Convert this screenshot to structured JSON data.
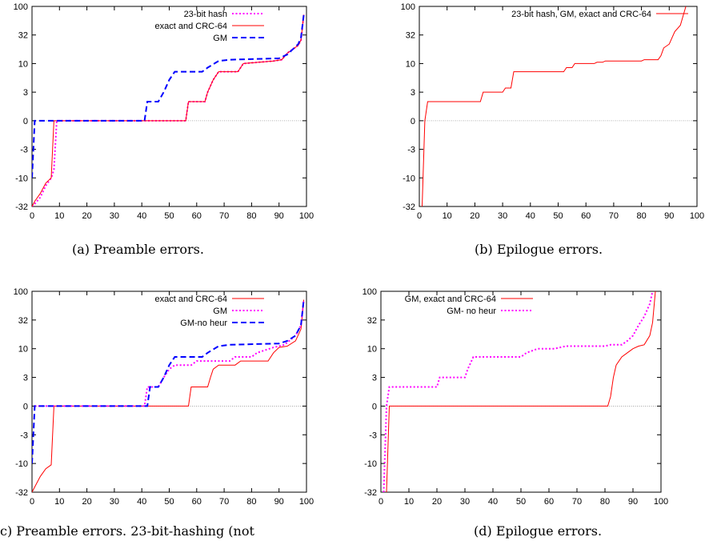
{
  "colors": {
    "red": "#ff0000",
    "magenta": "#ff00ff",
    "blue": "#0000ff",
    "zero_line": "#999999"
  },
  "captions": {
    "a": "(a)  Preamble errors.",
    "b": "(b)  Epilogue errors.",
    "c": "c)  Preamble   errors.     23-bit-hashing  (not",
    "d": "(d)  Epilogue errors."
  },
  "chart_data": [
    {
      "id": "a",
      "type": "line",
      "title": "",
      "xlabel": "",
      "ylabel": "",
      "xlim": [
        0,
        100
      ],
      "x_ticks": [
        "0",
        "10",
        "20",
        "30",
        "40",
        "50",
        "60",
        "70",
        "80",
        "90",
        "100"
      ],
      "y_ticks": [
        "100",
        "32",
        "10",
        "3",
        "0",
        "-3",
        "-10",
        "-32"
      ],
      "legend_position": "top-right",
      "grid": false,
      "series": [
        {
          "name": "23-bit hash",
          "color": "#ff00ff",
          "style": "dotted",
          "points": [
            [
              0,
              -32
            ],
            [
              1,
              -30
            ],
            [
              3,
              -25
            ],
            [
              5,
              -16
            ],
            [
              7,
              -10
            ],
            [
              8,
              -8
            ],
            [
              9,
              0
            ],
            [
              56,
              0
            ],
            [
              57,
              2
            ],
            [
              63,
              2
            ],
            [
              64,
              3
            ],
            [
              66,
              6
            ],
            [
              68,
              8
            ],
            [
              75,
              8
            ],
            [
              77,
              10
            ],
            [
              88,
              12
            ],
            [
              91,
              13
            ],
            [
              93,
              18
            ],
            [
              97,
              24
            ],
            [
              98,
              28
            ],
            [
              99,
              80
            ]
          ]
        },
        {
          "name": "exact and CRC-64",
          "color": "#ff0000",
          "style": "solid",
          "points": [
            [
              0,
              -32
            ],
            [
              1,
              -28
            ],
            [
              3,
              -22
            ],
            [
              5,
              -14
            ],
            [
              7,
              -10
            ],
            [
              8,
              0
            ],
            [
              56,
              0
            ],
            [
              57,
              2
            ],
            [
              63,
              2
            ],
            [
              64,
              3
            ],
            [
              66,
              6
            ],
            [
              68,
              8
            ],
            [
              75,
              8
            ],
            [
              77,
              10
            ],
            [
              88,
              12
            ],
            [
              91,
              13
            ],
            [
              93,
              18
            ],
            [
              97,
              24
            ],
            [
              98,
              28
            ],
            [
              99,
              80
            ]
          ]
        },
        {
          "name": "GM",
          "color": "#0000ff",
          "style": "dashed",
          "points": [
            [
              0,
              -10
            ],
            [
              1,
              0
            ],
            [
              41,
              0
            ],
            [
              42,
              2
            ],
            [
              46,
              2
            ],
            [
              48,
              3
            ],
            [
              50,
              6
            ],
            [
              52,
              8
            ],
            [
              62,
              8
            ],
            [
              64,
              9
            ],
            [
              68,
              12
            ],
            [
              72,
              13
            ],
            [
              90,
              14
            ],
            [
              93,
              17
            ],
            [
              97,
              25
            ],
            [
              98,
              30
            ],
            [
              99,
              80
            ]
          ]
        }
      ]
    },
    {
      "id": "b",
      "type": "line",
      "title": "",
      "xlabel": "",
      "ylabel": "",
      "xlim": [
        0,
        100
      ],
      "x_ticks": [
        "0",
        "10",
        "20",
        "30",
        "40",
        "50",
        "60",
        "70",
        "80",
        "90",
        "100"
      ],
      "y_ticks": [
        "100",
        "32",
        "10",
        "3",
        "0",
        "-3",
        "-10",
        "-32"
      ],
      "legend_position": "top-right",
      "grid": false,
      "series": [
        {
          "name": "23-bit hash, GM, exact and CRC-64",
          "color": "#ff0000",
          "style": "solid",
          "points": [
            [
              1,
              -32
            ],
            [
              2,
              0
            ],
            [
              3,
              2
            ],
            [
              22,
              2
            ],
            [
              23,
              3
            ],
            [
              30,
              3
            ],
            [
              31,
              4
            ],
            [
              33,
              4
            ],
            [
              34,
              8
            ],
            [
              52,
              8
            ],
            [
              53,
              9
            ],
            [
              55,
              9
            ],
            [
              56,
              10
            ],
            [
              63,
              10
            ],
            [
              64,
              11
            ],
            [
              66,
              11
            ],
            [
              67,
              12
            ],
            [
              80,
              12
            ],
            [
              81,
              13
            ],
            [
              86,
              13
            ],
            [
              87,
              16
            ],
            [
              88,
              22
            ],
            [
              90,
              25
            ],
            [
              92,
              40
            ],
            [
              94,
              55
            ],
            [
              96,
              100
            ]
          ]
        }
      ]
    },
    {
      "id": "c",
      "type": "line",
      "title": "",
      "xlabel": "",
      "ylabel": "",
      "xlim": [
        0,
        100
      ],
      "x_ticks": [
        "0",
        "10",
        "20",
        "30",
        "40",
        "50",
        "60",
        "70",
        "80",
        "90",
        "100"
      ],
      "y_ticks": [
        "100",
        "32",
        "10",
        "3",
        "0",
        "-3",
        "-10",
        "-32"
      ],
      "legend_position": "top-right",
      "grid": false,
      "series": [
        {
          "name": "exact and CRC-64",
          "color": "#ff0000",
          "style": "solid",
          "points": [
            [
              0,
              -32
            ],
            [
              1,
              -28
            ],
            [
              3,
              -20
            ],
            [
              5,
              -14
            ],
            [
              7,
              -11
            ],
            [
              8,
              0
            ],
            [
              57,
              0
            ],
            [
              58,
              2
            ],
            [
              64,
              2
            ],
            [
              65,
              3
            ],
            [
              66,
              5
            ],
            [
              68,
              6
            ],
            [
              74,
              6
            ],
            [
              76,
              7
            ],
            [
              86,
              7
            ],
            [
              88,
              9
            ],
            [
              90,
              11
            ],
            [
              93,
              12
            ],
            [
              96,
              16
            ],
            [
              98,
              25
            ],
            [
              99,
              80
            ]
          ]
        },
        {
          "name": "GM",
          "color": "#ff00ff",
          "style": "dotted",
          "points": [
            [
              1,
              0
            ],
            [
              41,
              0
            ],
            [
              42,
              2
            ],
            [
              46,
              2
            ],
            [
              48,
              3
            ],
            [
              50,
              5
            ],
            [
              52,
              6
            ],
            [
              58,
              6
            ],
            [
              60,
              7
            ],
            [
              72,
              7
            ],
            [
              74,
              8
            ],
            [
              80,
              8
            ],
            [
              82,
              9
            ],
            [
              88,
              11
            ],
            [
              92,
              13
            ],
            [
              96,
              20
            ],
            [
              98,
              28
            ],
            [
              99,
              80
            ]
          ]
        },
        {
          "name": "GM-no heur",
          "color": "#0000ff",
          "style": "dashed",
          "points": [
            [
              0,
              -10
            ],
            [
              1,
              0
            ],
            [
              42,
              0
            ],
            [
              43,
              2
            ],
            [
              46,
              2
            ],
            [
              48,
              3
            ],
            [
              50,
              6
            ],
            [
              52,
              8
            ],
            [
              62,
              8
            ],
            [
              64,
              9
            ],
            [
              68,
              12
            ],
            [
              72,
              13
            ],
            [
              90,
              14
            ],
            [
              93,
              16
            ],
            [
              96,
              20
            ],
            [
              98,
              28
            ],
            [
              99,
              80
            ]
          ]
        }
      ]
    },
    {
      "id": "d",
      "type": "line",
      "title": "",
      "xlabel": "",
      "ylabel": "",
      "xlim": [
        0,
        100
      ],
      "x_ticks": [
        "0",
        "10",
        "20",
        "30",
        "40",
        "50",
        "60",
        "70",
        "80",
        "90",
        "100"
      ],
      "y_ticks": [
        "100",
        "32",
        "10",
        "3",
        "0",
        "-3",
        "-10",
        "-32"
      ],
      "legend_position": "top-right",
      "grid": false,
      "series": [
        {
          "name": "GM, exact and CRC-64",
          "color": "#ff0000",
          "style": "solid",
          "points": [
            [
              2,
              -32
            ],
            [
              3,
              0
            ],
            [
              81,
              0
            ],
            [
              82,
              1
            ],
            [
              83,
              3
            ],
            [
              84,
              6
            ],
            [
              86,
              8
            ],
            [
              88,
              9
            ],
            [
              90,
              10
            ],
            [
              92,
              12
            ],
            [
              94,
              13
            ],
            [
              96,
              20
            ],
            [
              97,
              30
            ],
            [
              98,
              100
            ]
          ]
        },
        {
          "name": "GM- no heur",
          "color": "#ff00ff",
          "style": "dotted",
          "points": [
            [
              1,
              -32
            ],
            [
              2,
              0
            ],
            [
              3,
              2
            ],
            [
              20,
              2
            ],
            [
              21,
              3
            ],
            [
              30,
              3
            ],
            [
              31,
              5
            ],
            [
              33,
              8
            ],
            [
              50,
              8
            ],
            [
              52,
              9
            ],
            [
              56,
              10
            ],
            [
              62,
              10
            ],
            [
              64,
              11
            ],
            [
              66,
              12
            ],
            [
              80,
              12
            ],
            [
              82,
              13
            ],
            [
              86,
              13
            ],
            [
              88,
              16
            ],
            [
              90,
              20
            ],
            [
              92,
              28
            ],
            [
              94,
              40
            ],
            [
              96,
              70
            ],
            [
              97,
              100
            ]
          ]
        }
      ]
    }
  ]
}
